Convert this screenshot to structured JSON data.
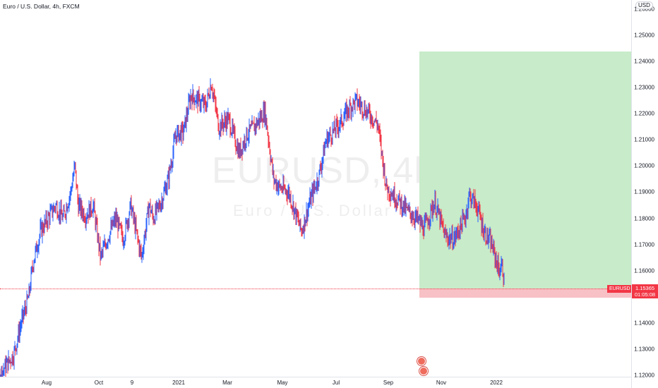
{
  "header": {
    "title": "Euro / U.S. Dollar, 4h, FXCM",
    "currency": "USD"
  },
  "watermark": {
    "symbol": "EURUSD, 4h",
    "name": "Euro / U.S. Dollar"
  },
  "price_axis": {
    "labels": [
      "1.26000",
      "1.25000",
      "1.24000",
      "1.23000",
      "1.22000",
      "1.21000",
      "1.20000",
      "1.19000",
      "1.18000",
      "1.17000",
      "1.16000",
      "1.14000",
      "1.13000",
      "1.12000"
    ],
    "current_symbol": "EURUSD",
    "current_price": "1.15365",
    "countdown": "01:05:08"
  },
  "time_axis": {
    "labels": [
      "Aug",
      "Oct",
      "9",
      "2021",
      "Mar",
      "May",
      "Jul",
      "Sep",
      "Nov",
      "2022"
    ]
  },
  "colors": {
    "up": "#2962ff",
    "down": "#f23645",
    "target_zone": "#c8ebc9",
    "stop_zone": "#f7c1c5"
  },
  "chart_data": {
    "type": "candlestick",
    "symbol": "EURUSD",
    "interval": "4h",
    "ylim": [
      1.117,
      1.27
    ],
    "path": [
      [
        "2020-06-05",
        1.137
      ],
      [
        "2020-06-12",
        1.125
      ],
      [
        "2020-06-19",
        1.118
      ],
      [
        "2020-06-26",
        1.122
      ],
      [
        "2020-07-06",
        1.128
      ],
      [
        "2020-07-13",
        1.14
      ],
      [
        "2020-07-20",
        1.15
      ],
      [
        "2020-07-24",
        1.163
      ],
      [
        "2020-07-31",
        1.175
      ],
      [
        "2020-08-07",
        1.18
      ],
      [
        "2020-08-14",
        1.185
      ],
      [
        "2020-08-21",
        1.18
      ],
      [
        "2020-08-28",
        1.19
      ],
      [
        "2020-09-01",
        1.2
      ],
      [
        "2020-09-04",
        1.185
      ],
      [
        "2020-09-11",
        1.181
      ],
      [
        "2020-09-18",
        1.185
      ],
      [
        "2020-09-25",
        1.165
      ],
      [
        "2020-10-01",
        1.172
      ],
      [
        "2020-10-09",
        1.18
      ],
      [
        "2020-10-16",
        1.172
      ],
      [
        "2020-10-23",
        1.185
      ],
      [
        "2020-11-02",
        1.165
      ],
      [
        "2020-11-09",
        1.185
      ],
      [
        "2020-11-13",
        1.18
      ],
      [
        "2020-11-20",
        1.186
      ],
      [
        "2020-11-27",
        1.195
      ],
      [
        "2020-12-04",
        1.212
      ],
      [
        "2020-12-11",
        1.213
      ],
      [
        "2020-12-18",
        1.227
      ],
      [
        "2021-01-01",
        1.223
      ],
      [
        "2021-01-06",
        1.232
      ],
      [
        "2021-01-13",
        1.215
      ],
      [
        "2021-01-22",
        1.218
      ],
      [
        "2021-02-01",
        1.205
      ],
      [
        "2021-02-08",
        1.212
      ],
      [
        "2021-02-15",
        1.215
      ],
      [
        "2021-02-25",
        1.221
      ],
      [
        "2021-03-05",
        1.195
      ],
      [
        "2021-03-10",
        1.192
      ],
      [
        "2021-03-19",
        1.19
      ],
      [
        "2021-03-31",
        1.175
      ],
      [
        "2021-04-09",
        1.188
      ],
      [
        "2021-04-16",
        1.196
      ],
      [
        "2021-04-23",
        1.21
      ],
      [
        "2021-05-07",
        1.217
      ],
      [
        "2021-05-14",
        1.222
      ],
      [
        "2021-05-21",
        1.225
      ],
      [
        "2021-06-02",
        1.22
      ],
      [
        "2021-06-10",
        1.216
      ],
      [
        "2021-06-18",
        1.192
      ],
      [
        "2021-06-29",
        1.187
      ],
      [
        "2021-07-07",
        1.183
      ],
      [
        "2021-07-16",
        1.18
      ],
      [
        "2021-07-23",
        1.176
      ],
      [
        "2021-08-02",
        1.186
      ],
      [
        "2021-08-12",
        1.173
      ],
      [
        "2021-08-20",
        1.172
      ],
      [
        "2021-08-31",
        1.181
      ],
      [
        "2021-09-03",
        1.189
      ],
      [
        "2021-09-10",
        1.185
      ],
      [
        "2021-09-17",
        1.175
      ],
      [
        "2021-09-24",
        1.17
      ],
      [
        "2021-10-01",
        1.16
      ],
      [
        "2021-10-04",
        1.162
      ],
      [
        "2021-10-06",
        1.1537
      ]
    ],
    "position": {
      "type": "long",
      "entry": 1.1537,
      "target": 1.251,
      "stop": 1.15
    }
  }
}
